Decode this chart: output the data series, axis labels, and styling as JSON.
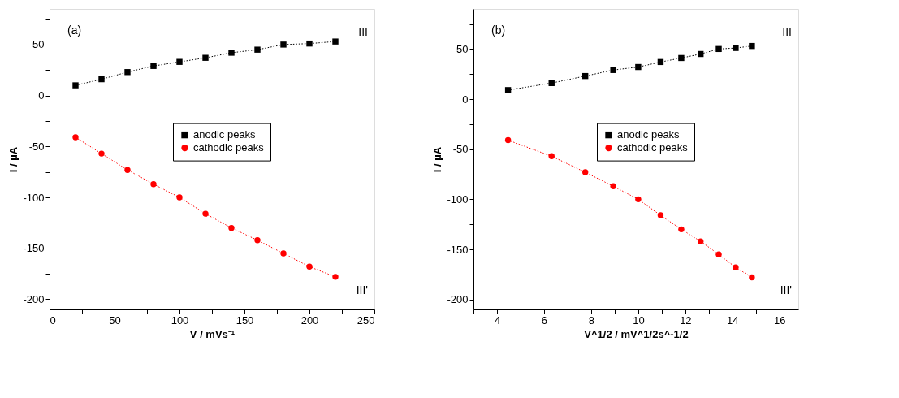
{
  "chart_data": [
    {
      "type": "line",
      "xlabel": "V / mVs⁻¹",
      "ylabel": "I / µA",
      "xlim": [
        0,
        250
      ],
      "ylim": [
        -210,
        85
      ],
      "xticks": [
        0,
        {
          "value": 25,
          "label": null
        },
        50,
        {
          "value": 75,
          "label": null
        },
        100,
        {
          "value": 125,
          "label": null
        },
        150,
        {
          "value": 175,
          "label": null
        },
        200,
        {
          "value": 225,
          "label": null
        },
        250
      ],
      "yticks": [
        -200,
        {
          "value": -175,
          "label": null
        },
        -150,
        {
          "value": -125,
          "label": null
        },
        -100,
        {
          "value": -75,
          "label": null
        },
        -50,
        {
          "value": -25,
          "label": null
        },
        0,
        {
          "value": 25,
          "label": null
        },
        50,
        {
          "value": 75,
          "label": null
        }
      ],
      "x": [
        20,
        40,
        60,
        80,
        100,
        120,
        140,
        160,
        180,
        200,
        220
      ],
      "series": [
        {
          "name": "anodic peaks",
          "color": "#000000",
          "marker": "square",
          "line_style": "dotted",
          "values": [
            10,
            16,
            23,
            29,
            33,
            37,
            42,
            45,
            50,
            51,
            53
          ]
        },
        {
          "name": "cathodic peaks",
          "color": "#ff0000",
          "marker": "circle",
          "line_style": "dotted",
          "values": [
            -41,
            -57,
            -73,
            -87,
            -100,
            -116,
            -130,
            -142,
            -155,
            -168,
            -178
          ]
        }
      ],
      "annotations": [
        "(a)",
        "III",
        "III'"
      ],
      "grid": false,
      "legend": "center"
    },
    {
      "type": "line",
      "xlabel": "V^1/2 / mV^1/2s^-1/2",
      "ylabel": "I / µA",
      "xlim": [
        3,
        16.8
      ],
      "ylim": [
        -210,
        90
      ],
      "xticks": [
        {
          "value": 3,
          "label": null
        },
        4,
        {
          "value": 5,
          "label": null
        },
        6,
        {
          "value": 7,
          "label": null
        },
        8,
        {
          "value": 9,
          "label": null
        },
        10,
        {
          "value": 11,
          "label": null
        },
        12,
        {
          "value": 13,
          "label": null
        },
        14,
        {
          "value": 15,
          "label": null
        },
        16
      ],
      "yticks": [
        -200,
        {
          "value": -175,
          "label": null
        },
        -150,
        {
          "value": -125,
          "label": null
        },
        -100,
        {
          "value": -75,
          "label": null
        },
        -50,
        {
          "value": -25,
          "label": null
        },
        0,
        {
          "value": 25,
          "label": null
        },
        50,
        {
          "value": 75,
          "label": null
        }
      ],
      "x": [
        4.47,
        6.32,
        7.75,
        8.94,
        10,
        10.95,
        11.83,
        12.65,
        13.42,
        14.14,
        14.83
      ],
      "series": [
        {
          "name": "anodic peaks",
          "color": "#000000",
          "marker": "square",
          "line_style": "dotted",
          "values": [
            9,
            16,
            23,
            29,
            32,
            37,
            41,
            45,
            50,
            51,
            53
          ]
        },
        {
          "name": "cathodic peaks",
          "color": "#ff0000",
          "marker": "circle",
          "line_style": "dotted",
          "values": [
            -41,
            -57,
            -73,
            -87,
            -100,
            -116,
            -130,
            -142,
            -155,
            -168,
            -178
          ]
        }
      ],
      "annotations": [
        "(b)",
        "III",
        "III'"
      ],
      "grid": false,
      "legend": "center"
    }
  ]
}
